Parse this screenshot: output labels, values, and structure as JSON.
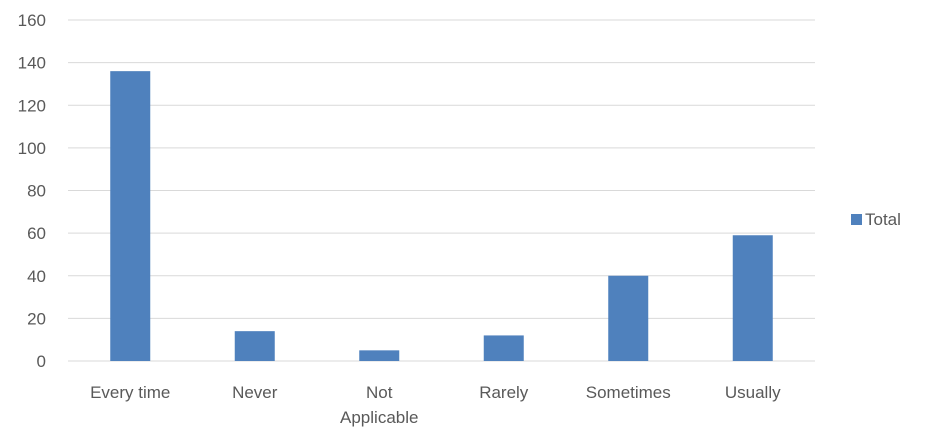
{
  "chart_data": {
    "type": "bar",
    "categories": [
      "Every time",
      "Never",
      "Not Applicable",
      "Rarely",
      "Sometimes",
      "Usually"
    ],
    "series": [
      {
        "name": "Total",
        "values": [
          136,
          14,
          5,
          12,
          40,
          59
        ],
        "color": "#4f81bd"
      }
    ],
    "ylim": [
      0,
      160
    ],
    "yticks": [
      0,
      20,
      40,
      60,
      80,
      100,
      120,
      140,
      160
    ],
    "grid": true,
    "legend": "right"
  }
}
